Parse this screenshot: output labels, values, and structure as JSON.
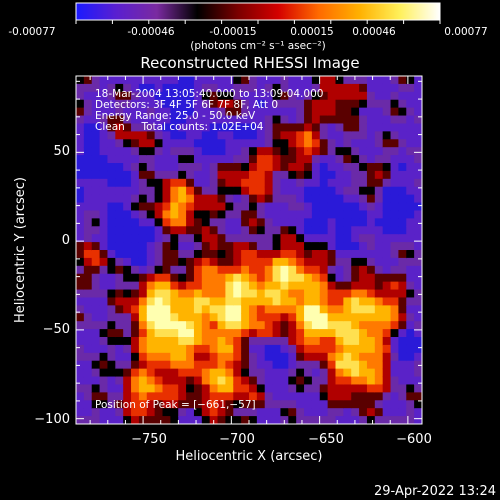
{
  "colorbar": {
    "tick_labels": [
      "-0.00077",
      "-0.00046",
      "-0.00015",
      "0.00015",
      "0.00046",
      "0.00077"
    ],
    "unit_label": "(photons cm⁻² s⁻¹ asec⁻²)",
    "range": [
      -0.00077,
      0.00077
    ],
    "colors": [
      "#1a1aff",
      "#5a1fd0",
      "#7a2aa0",
      "#000000",
      "#7a0000",
      "#d40000",
      "#ff6a00",
      "#ffb000",
      "#fff05a",
      "#ffffff"
    ]
  },
  "chart_data": {
    "type": "heatmap",
    "title": "Reconstructed RHESSI Image",
    "xlabel": "Heliocentric X (arcsec)",
    "ylabel": "Heliocentric Y (arcsec)",
    "xlim": [
      -788,
      -592
    ],
    "ylim": [
      -103,
      93
    ],
    "x_ticks": [
      -750,
      -700,
      -650,
      -600
    ],
    "y_ticks": [
      50,
      0,
      -50,
      -100
    ],
    "x_tick_labels": [
      "−750",
      "−700",
      "−650",
      "−600"
    ],
    "y_tick_labels": [
      "50",
      "0",
      "−50",
      "−100"
    ],
    "annotations": [
      "18-Mar-2004 13:05:40.000 to 13:09:04.000",
      "Detectors: 3F 4F 5F 6F 7F 8F, Att 0",
      "Energy Range: 25.0 - 50.0 keV",
      "Clean     Total counts: 1.02E+04"
    ],
    "peak_label": "Position of Peak = [−661,−57]",
    "peak": [
      -661,
      -57
    ]
  },
  "footer": {
    "timestamp": "29-Apr-2022 13:24"
  }
}
